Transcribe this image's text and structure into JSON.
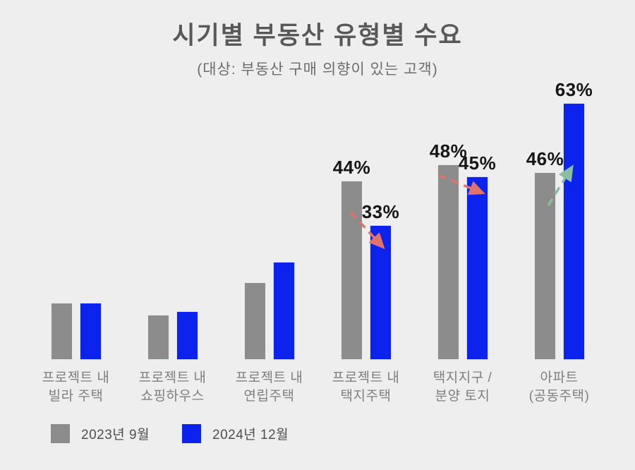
{
  "header": {
    "title": "시기별 부동산 유형별 수요",
    "subtitle": "(대상: 부동산 구매 의향이 있는 고객)"
  },
  "chart_data": {
    "type": "bar",
    "title": "시기별 부동산 유형별 수요",
    "subtitle": "(대상: 부동산 구매 의향이 있는 고객)",
    "unit": "%",
    "ylim": [
      0,
      70
    ],
    "grid": false,
    "legend_position": "bottom-left",
    "categories": [
      [
        "프로젝트 내",
        "빌라 주택"
      ],
      [
        "프로젝트 내",
        "쇼핑하우스"
      ],
      [
        "프로젝트 내",
        "연립주택"
      ],
      [
        "프로젝트 내",
        "택지주택"
      ],
      [
        "택지지구 /",
        "분양 토지"
      ],
      [
        "아파트",
        "(공동주택)"
      ]
    ],
    "series": [
      {
        "name": "2023년 9월",
        "color": "#8c8c8c",
        "values": [
          14,
          11,
          19,
          44,
          48,
          46
        ],
        "labels": [
          "",
          "",
          "",
          "44%",
          "48%",
          "46%"
        ]
      },
      {
        "name": "2024년 12월",
        "color": "#0c23ee",
        "values": [
          14,
          12,
          24,
          33,
          45,
          63
        ],
        "labels": [
          "",
          "",
          "",
          "33%",
          "45%",
          "63%"
        ]
      }
    ],
    "annotations": [
      {
        "group_index": 3,
        "trend": "down",
        "color": "#e0736b"
      },
      {
        "group_index": 4,
        "trend": "down",
        "color": "#e0736b"
      },
      {
        "group_index": 5,
        "trend": "up",
        "color": "#8bbda2"
      }
    ]
  },
  "legend": {
    "items": [
      {
        "label": "2023년 9월",
        "color": "#8c8c8c"
      },
      {
        "label": "2024년 12월",
        "color": "#0c23ee"
      }
    ]
  }
}
